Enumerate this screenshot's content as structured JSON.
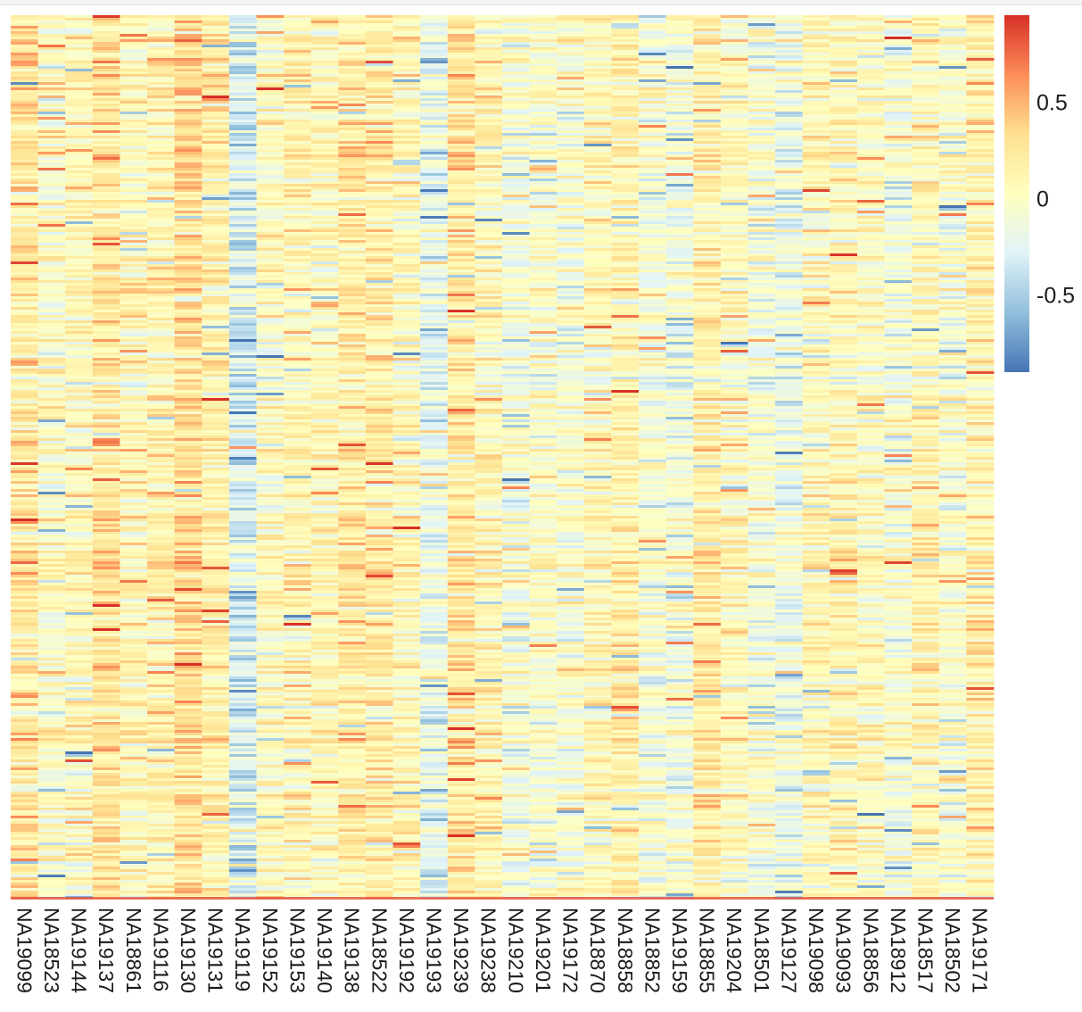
{
  "chart_data": {
    "type": "heatmap",
    "title": "",
    "xlabel": "",
    "ylabel": "",
    "columns": [
      "NA19099",
      "NA18523",
      "NA19144",
      "NA19137",
      "NA18861",
      "NA19116",
      "NA19130",
      "NA19131",
      "NA19119",
      "NA19152",
      "NA19153",
      "NA19140",
      "NA19138",
      "NA18522",
      "NA19192",
      "NA19193",
      "NA19239",
      "NA19238",
      "NA19210",
      "NA19201",
      "NA19172",
      "NA18870",
      "NA18858",
      "NA18852",
      "NA19159",
      "NA18855",
      "NA19204",
      "NA18501",
      "NA19127",
      "NA19098",
      "NA19093",
      "NA18856",
      "NA18912",
      "NA18517",
      "NA18502",
      "NA19171"
    ],
    "row_count": 330,
    "value_range": [
      -0.9,
      0.95
    ],
    "colorbar": {
      "ticks": [
        0.5,
        0,
        -0.5
      ],
      "tick_labels": [
        "0.5",
        "0",
        "-0.5"
      ],
      "colors": [
        "#4575b4",
        "#91bfdb",
        "#e0f3f8",
        "#ffffbf",
        "#fee090",
        "#fc8d59",
        "#d73027"
      ]
    },
    "column_bias": [
      0.22,
      0.02,
      0.06,
      0.26,
      0.08,
      0.12,
      0.32,
      0.16,
      -0.3,
      0.04,
      0.1,
      0.08,
      0.2,
      0.18,
      0.08,
      -0.2,
      0.24,
      0.1,
      -0.08,
      -0.02,
      -0.06,
      0.06,
      0.14,
      -0.06,
      -0.1,
      0.18,
      0.06,
      -0.08,
      -0.16,
      0.06,
      0.1,
      0.04,
      -0.06,
      0.1,
      -0.04,
      0.14
    ]
  }
}
